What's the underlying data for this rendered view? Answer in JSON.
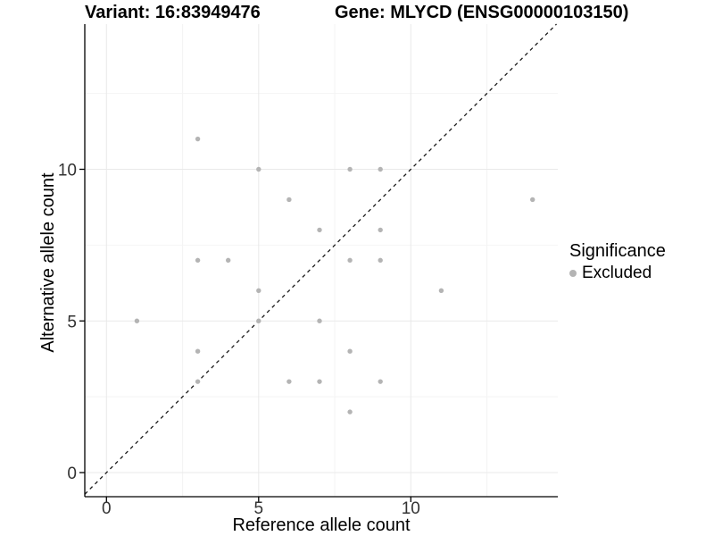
{
  "header": {
    "variant_title": "Variant: 16:83949476",
    "gene_title": "Gene: MLYCD (ENSG00000103150)"
  },
  "chart_data": {
    "type": "scatter",
    "xlabel": "Reference allele count",
    "ylabel": "Alternative allele count",
    "xlim": [
      -0.71,
      14.83
    ],
    "ylim": [
      -0.79,
      14.78
    ],
    "x_ticks": [
      {
        "value": 0,
        "label": "0"
      },
      {
        "value": 5,
        "label": "5"
      },
      {
        "value": 10,
        "label": "10"
      }
    ],
    "y_ticks": [
      {
        "value": 0,
        "label": "0"
      },
      {
        "value": 5,
        "label": "5"
      },
      {
        "value": 10,
        "label": "10"
      }
    ],
    "minor_grid": [
      2.5,
      7.5,
      12.5
    ],
    "grid": true,
    "identity_line": {
      "equation": "y = x",
      "style": "dashed",
      "color": "#1a1a1a"
    },
    "legend": {
      "position": "right",
      "title": "Significance",
      "items": [
        {
          "label": "Excluded",
          "color": "#b4b4b4"
        }
      ]
    },
    "series": [
      {
        "name": "Excluded",
        "color": "#b4b4b4",
        "points": [
          [
            3,
            11
          ],
          [
            5,
            10
          ],
          [
            8,
            10
          ],
          [
            9,
            10
          ],
          [
            6,
            9
          ],
          [
            14,
            9
          ],
          [
            7,
            8
          ],
          [
            9,
            8
          ],
          [
            3,
            7
          ],
          [
            4,
            7
          ],
          [
            8,
            7
          ],
          [
            9,
            7
          ],
          [
            5,
            6
          ],
          [
            11,
            6
          ],
          [
            1,
            5
          ],
          [
            5,
            5
          ],
          [
            7,
            5
          ],
          [
            3,
            4
          ],
          [
            8,
            4
          ],
          [
            3,
            3
          ],
          [
            6,
            3
          ],
          [
            7,
            3
          ],
          [
            9,
            3
          ],
          [
            8,
            2
          ]
        ]
      }
    ],
    "style": {
      "major_grid_color": "#e9e9e9",
      "minor_grid_color": "#f4f4f4",
      "axis_color": "#000000",
      "tick_label_color": "#333333",
      "point_radius": 2.7
    }
  }
}
